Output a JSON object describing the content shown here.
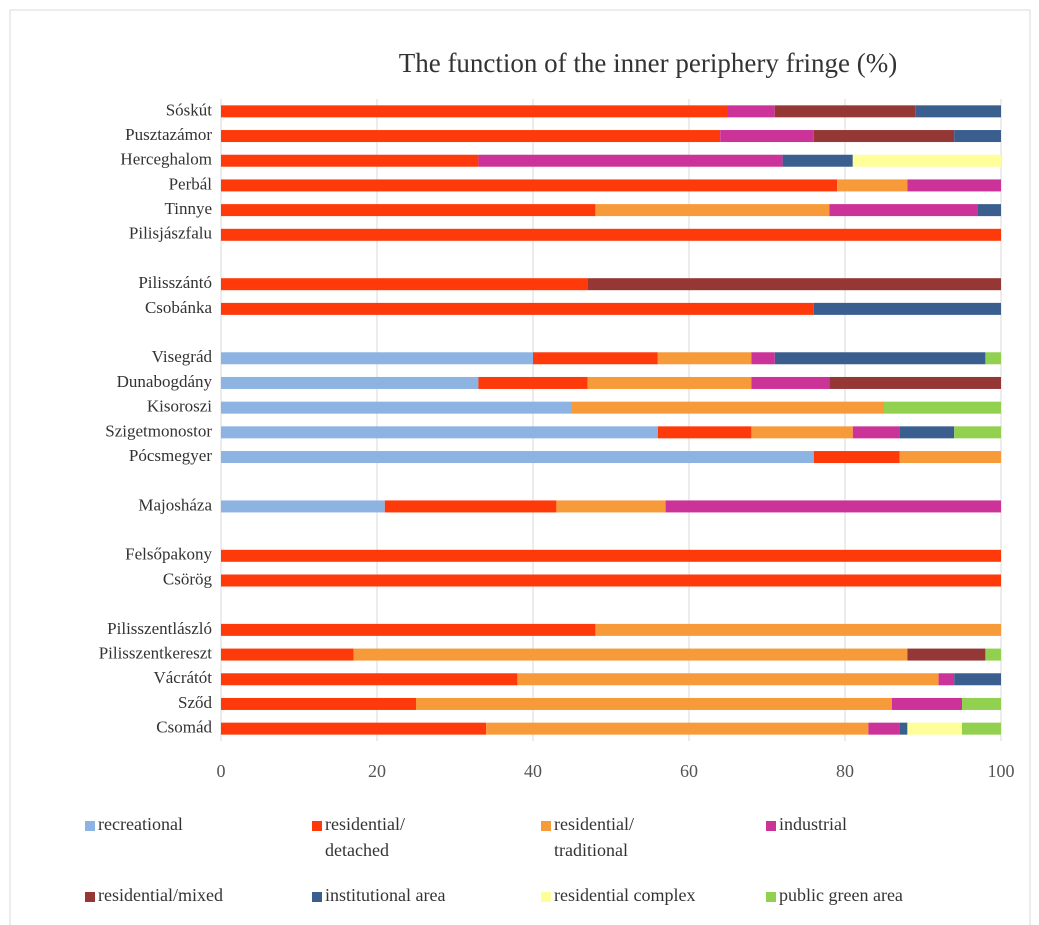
{
  "chart_data": {
    "type": "stacked_barh",
    "title": "The function of the inner periphery fringe (%)",
    "categories": [
      "Sóskút",
      "Pusztazámor",
      "Herceghalom",
      "Perbál",
      "Tinnye",
      "Pilisjászfalu",
      null,
      "Pilisszántó",
      "Csobánka",
      null,
      "Visegrád",
      "Dunabogdány",
      "Kisoroszi",
      "Szigetmonostor",
      "Pócsmegyer",
      null,
      "Majosháza",
      null,
      "Felsőpakony",
      "Csörög",
      null,
      "Pilisszentlászló",
      "Pilisszentkereszt",
      "Vácrátót",
      "Sződ",
      "Csomád"
    ],
    "series": [
      {
        "name": "recreational",
        "color": "#8db3e2",
        "values": [
          0,
          0,
          0,
          0,
          0,
          0,
          null,
          0,
          0,
          null,
          40,
          33,
          45,
          56,
          76,
          null,
          21,
          null,
          0,
          0,
          null,
          0,
          0,
          0,
          0,
          0
        ]
      },
      {
        "name": "residential/detached",
        "color": "#ff3a0a",
        "values": [
          65,
          64,
          33,
          79,
          48,
          100,
          null,
          47,
          76,
          null,
          16,
          14,
          0,
          12,
          11,
          null,
          22,
          null,
          100,
          100,
          null,
          48,
          17,
          38,
          25,
          34
        ]
      },
      {
        "name": "residential/traditional",
        "color": "#f79a3a",
        "values": [
          0,
          0,
          0,
          9,
          30,
          0,
          null,
          0,
          0,
          null,
          12,
          21,
          40,
          13,
          13,
          null,
          14,
          null,
          0,
          0,
          null,
          52,
          71,
          54,
          61,
          49
        ]
      },
      {
        "name": "industrial",
        "color": "#cc3399",
        "values": [
          6,
          12,
          39,
          12,
          19,
          0,
          null,
          0,
          0,
          null,
          3,
          10,
          0,
          6,
          0,
          null,
          43,
          null,
          0,
          0,
          null,
          0,
          0,
          2,
          9,
          4
        ]
      },
      {
        "name": "residential/mixed",
        "color": "#953735",
        "values": [
          18,
          18,
          0,
          0,
          0,
          0,
          null,
          53,
          0,
          null,
          0,
          22,
          0,
          0,
          0,
          null,
          0,
          null,
          0,
          0,
          null,
          0,
          10,
          0,
          0,
          0
        ]
      },
      {
        "name": "institutional area",
        "color": "#3a5f8f",
        "values": [
          11,
          6,
          9,
          0,
          3,
          0,
          null,
          0,
          24,
          null,
          27,
          0,
          0,
          7,
          0,
          null,
          0,
          null,
          0,
          0,
          null,
          0,
          0,
          6,
          0,
          1
        ]
      },
      {
        "name": "residential complex",
        "color": "#ffff99",
        "values": [
          0,
          0,
          19,
          0,
          0,
          0,
          null,
          0,
          0,
          null,
          0,
          0,
          0,
          0,
          0,
          null,
          0,
          null,
          0,
          0,
          null,
          0,
          0,
          0,
          0,
          7
        ]
      },
      {
        "name": "public green area",
        "color": "#92d050",
        "values": [
          0,
          0,
          0,
          0,
          0,
          0,
          null,
          0,
          0,
          null,
          2,
          0,
          15,
          6,
          0,
          null,
          0,
          null,
          0,
          0,
          null,
          0,
          2,
          0,
          5,
          5
        ]
      }
    ],
    "xlim": [
      0,
      100
    ],
    "xticks": [
      0,
      20,
      40,
      60,
      80,
      100
    ],
    "grid": true,
    "legend": "bottom"
  }
}
